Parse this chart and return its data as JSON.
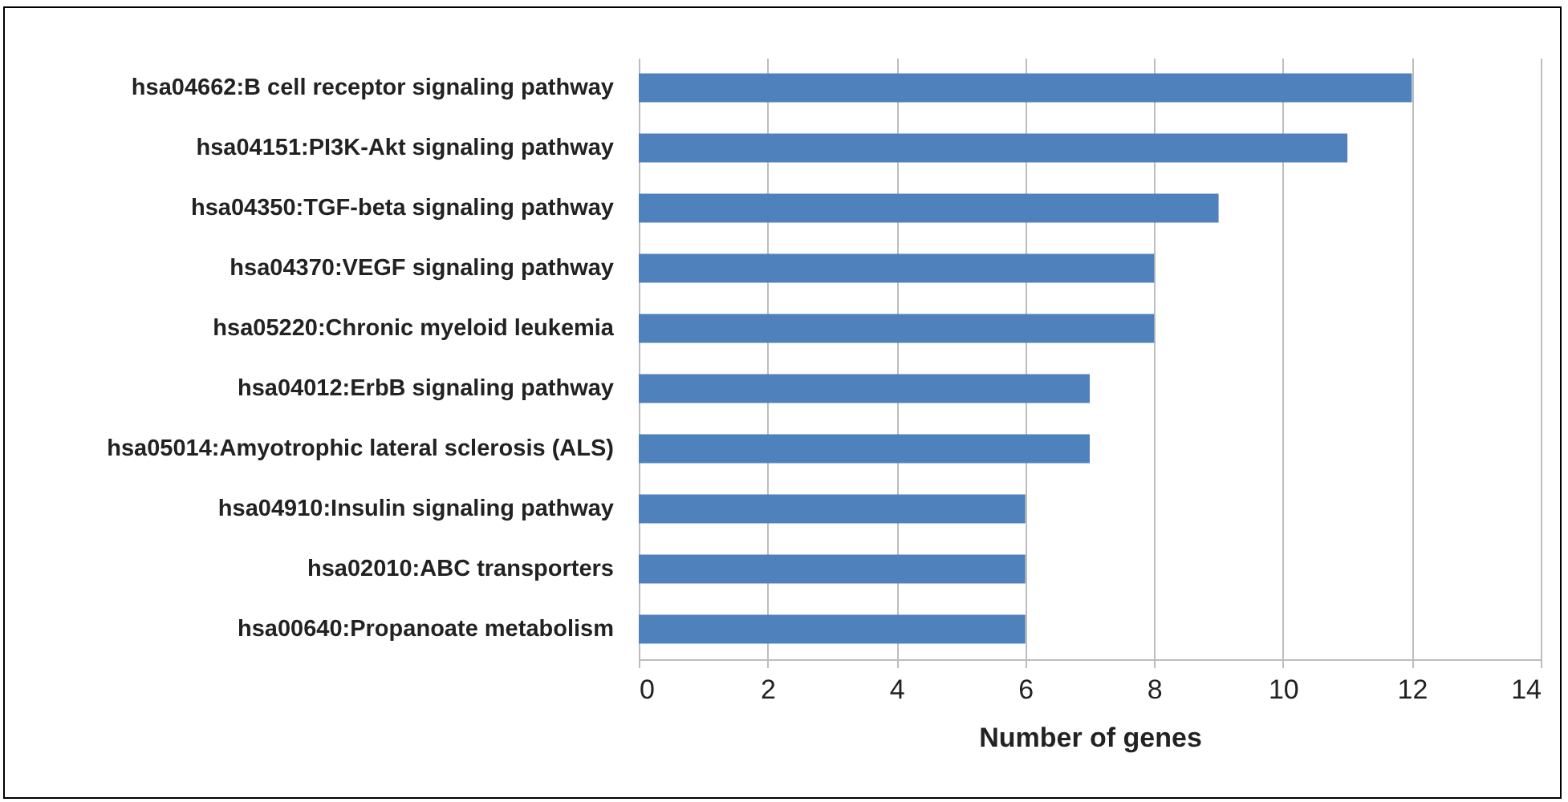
{
  "chart_data": {
    "type": "bar",
    "orientation": "horizontal",
    "xlabel": "Number of genes",
    "categories": [
      "hsa04662:B cell receptor signaling pathway",
      "hsa04151:PI3K-Akt signaling pathway",
      "hsa04350:TGF-beta signaling pathway",
      "hsa04370:VEGF signaling pathway",
      "hsa05220:Chronic myeloid leukemia",
      "hsa04012:ErbB signaling pathway",
      "hsa05014:Amyotrophic lateral sclerosis (ALS)",
      "hsa04910:Insulin signaling pathway",
      "hsa02010:ABC transporters",
      "hsa00640:Propanoate metabolism"
    ],
    "values": [
      12,
      11,
      9,
      8,
      8,
      7,
      7,
      6,
      6,
      6
    ],
    "color": "#4f81bd",
    "xlim": [
      0,
      14
    ],
    "xticks": [
      0,
      2,
      4,
      6,
      8,
      10,
      12,
      14
    ],
    "grid": "x"
  }
}
